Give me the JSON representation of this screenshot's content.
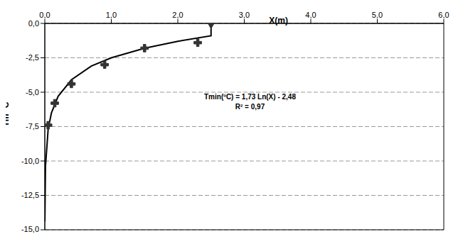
{
  "chart_data": {
    "type": "scatter",
    "xlabel": "X(m)",
    "ylabel": "Tm °C",
    "annotations": [
      "Tmin(ºC) = 1,73 Ln(X) - 2,48",
      "R² = 0,97"
    ],
    "xlim": [
      0,
      6
    ],
    "ylim": [
      -15,
      0
    ],
    "xticks": [
      {
        "value": 0,
        "label": "0,0"
      },
      {
        "value": 1,
        "label": "1,0"
      },
      {
        "value": 2,
        "label": "2,0"
      },
      {
        "value": 3,
        "label": "3,0"
      },
      {
        "value": 4,
        "label": "4,0"
      },
      {
        "value": 5,
        "label": "5,0"
      },
      {
        "value": 6,
        "label": "6,0"
      }
    ],
    "yticks": [
      {
        "value": 0,
        "label": "0,0"
      },
      {
        "value": -2.5,
        "label": "-2,5"
      },
      {
        "value": -5,
        "label": "-5,0"
      },
      {
        "value": -7.5,
        "label": "-7,5"
      },
      {
        "value": -10,
        "label": "-10,0"
      },
      {
        "value": -12.5,
        "label": "-12,5"
      },
      {
        "value": -15,
        "label": "-15,0"
      }
    ],
    "grid": true,
    "series": [
      {
        "type": "line",
        "marker": "none",
        "line_style": "solid",
        "color": "#000000",
        "x": [
          0.001,
          0.01,
          0.05,
          0.1,
          0.2,
          0.4,
          0.7,
          1.0,
          1.5,
          2.0,
          2.5,
          2.5
        ],
        "values": [
          -14.4,
          -10.4,
          -7.7,
          -6.5,
          -5.3,
          -4.1,
          -3.1,
          -2.5,
          -1.8,
          -1.3,
          -0.9,
          0.0
        ]
      },
      {
        "type": "scatter",
        "marker": "cross",
        "color": "#333333",
        "x": [
          0.05,
          0.15,
          0.4,
          0.9,
          1.5,
          2.3
        ],
        "values": [
          -7.4,
          -5.8,
          -4.4,
          -3.0,
          -1.8,
          -1.4
        ]
      },
      {
        "type": "scatter",
        "marker": "diamond",
        "color": "#333333",
        "x": [
          2.5
        ],
        "values": [
          0.0
        ]
      }
    ]
  }
}
